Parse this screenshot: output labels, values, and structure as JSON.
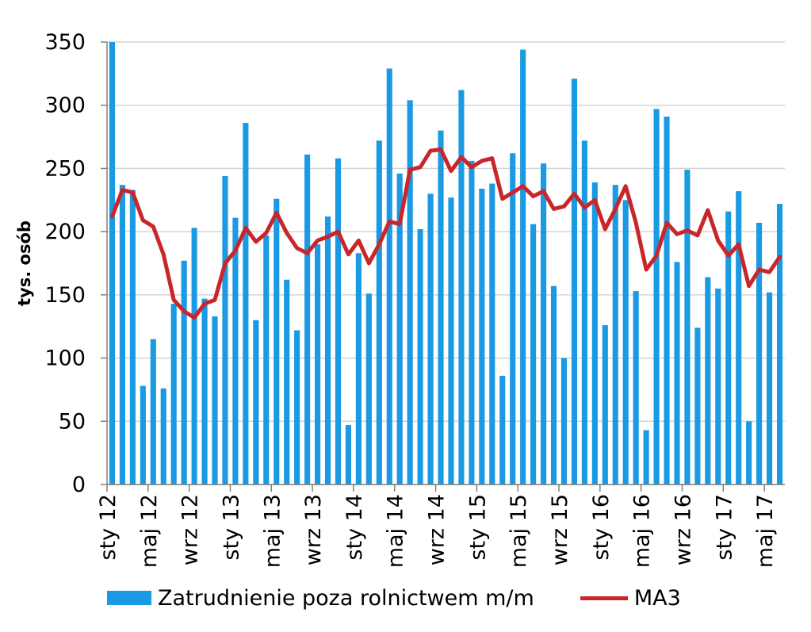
{
  "chart_data": {
    "type": "bar",
    "ylabel": "tys. osób",
    "ylim": [
      0,
      350
    ],
    "yticks": [
      0,
      50,
      100,
      150,
      200,
      250,
      300,
      350
    ],
    "grid": true,
    "legend_position": "bottom",
    "categories": [
      "sty 12",
      "lut 12",
      "mar 12",
      "kwi 12",
      "maj 12",
      "cze 12",
      "lip 12",
      "sie 12",
      "wrz 12",
      "paź 12",
      "lis 12",
      "gru 12",
      "sty 13",
      "lut 13",
      "mar 13",
      "kwi 13",
      "maj 13",
      "cze 13",
      "lip 13",
      "sie 13",
      "wrz 13",
      "paź 13",
      "lis 13",
      "gru 13",
      "sty 14",
      "lut 14",
      "mar 14",
      "kwi 14",
      "maj 14",
      "cze 14",
      "lip 14",
      "sie 14",
      "wrz 14",
      "paź 14",
      "lis 14",
      "gru 14",
      "sty 15",
      "lut 15",
      "mar 15",
      "kwi 15",
      "maj 15",
      "cze 15",
      "lip 15",
      "sie 15",
      "wrz 15",
      "paź 15",
      "lis 15",
      "gru 15",
      "sty 16",
      "lut 16",
      "mar 16",
      "kwi 16",
      "maj 16",
      "cze 16",
      "lip 16",
      "sie 16",
      "wrz 16",
      "paź 16",
      "lis 16",
      "gru 16",
      "sty 17",
      "lut 17",
      "mar 17",
      "kwi 17",
      "maj 17",
      "cze 17"
    ],
    "x_tick_labels": [
      "sty 12",
      "maj 12",
      "wrz 12",
      "sty 13",
      "maj 13",
      "wrz 13",
      "sty 14",
      "maj 14",
      "wrz 14",
      "sty 15",
      "maj 15",
      "wrz 15",
      "sty 16",
      "maj 16",
      "wrz 16",
      "sty 17",
      "maj 17"
    ],
    "series": [
      {
        "name": "Zatrudnienie poza rolnictwem m/m",
        "type": "bar",
        "color": "#1a9ae3",
        "values": [
          350,
          237,
          233,
          78,
          115,
          76,
          143,
          177,
          203,
          147,
          133,
          244,
          211,
          286,
          130,
          197,
          226,
          162,
          122,
          261,
          190,
          212,
          258,
          47,
          183,
          151,
          272,
          329,
          246,
          304,
          202,
          230,
          280,
          227,
          312,
          256,
          234,
          238,
          86,
          262,
          344,
          206,
          254,
          157,
          100,
          321,
          272,
          239,
          126,
          237,
          225,
          153,
          43,
          297,
          291,
          176,
          249,
          124,
          164,
          155,
          216,
          232,
          50,
          207,
          152,
          222
        ]
      },
      {
        "name": "MA3",
        "type": "line",
        "color": "#c8262a",
        "values": [
          212,
          233,
          231,
          209,
          204,
          182,
          146,
          137,
          132,
          143,
          146,
          175,
          185,
          203,
          192,
          199,
          215,
          199,
          187,
          183,
          193,
          196,
          200,
          182,
          193,
          175,
          190,
          208,
          206,
          249,
          251,
          264,
          265,
          248,
          259,
          251,
          256,
          258,
          226,
          231,
          236,
          228,
          232,
          218,
          220,
          230,
          219,
          225,
          202,
          218,
          236,
          207,
          170,
          181,
          207,
          198,
          201,
          197,
          217,
          193,
          181,
          190,
          157,
          170,
          168,
          180
        ]
      }
    ]
  }
}
